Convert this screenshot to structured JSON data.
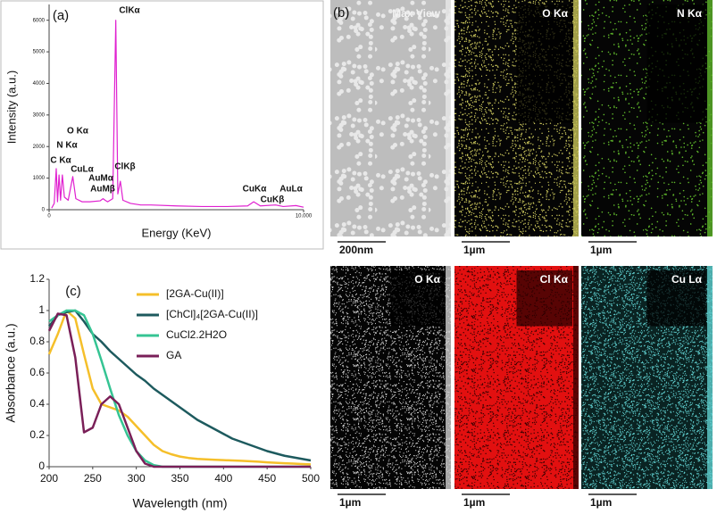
{
  "chart_data": [
    {
      "type": "line",
      "panel_label": "(a)",
      "x_label": "Energy (KeV)",
      "y_label": "Intensity (a.u.)",
      "x": [
        0.1,
        0.2,
        0.28,
        0.33,
        0.39,
        0.45,
        0.52,
        0.6,
        0.75,
        0.93,
        1.05,
        1.3,
        1.6,
        2.0,
        2.12,
        2.2,
        2.3,
        2.5,
        2.62,
        2.7,
        2.8,
        2.9,
        3.2,
        3.6,
        4.0,
        5.0,
        6.0,
        7.0,
        7.8,
        8.04,
        8.3,
        8.9,
        9.2,
        9.7,
        10.0
      ],
      "values": [
        50,
        200,
        1300,
        250,
        1100,
        300,
        1100,
        400,
        300,
        1050,
        350,
        250,
        250,
        280,
        350,
        300,
        250,
        350,
        6000,
        500,
        900,
        300,
        200,
        150,
        150,
        120,
        100,
        100,
        120,
        250,
        120,
        150,
        100,
        130,
        80
      ],
      "color": "#e020d0",
      "xlim": [
        0,
        10
      ],
      "xticks": [
        0,
        {
          "value": 10,
          "label": "10.000"
        }
      ],
      "ylim": [
        0,
        6500
      ],
      "yticks": [
        0,
        1000,
        2000,
        3000,
        4000,
        5000,
        6000
      ],
      "peak_labels": [
        "C Kα",
        "N Kα",
        "O Kα",
        "CuLα",
        "AuMα",
        "AuMβ",
        "ClKα",
        "ClKβ",
        "CuKα",
        "CuKβ",
        "AuLα"
      ]
    },
    {
      "type": "line",
      "panel_label": "(c)",
      "x_label": "Wavelength (nm)",
      "y_label": "Absorbance (a.u.)",
      "x": [
        200,
        210,
        220,
        230,
        240,
        250,
        260,
        270,
        280,
        290,
        300,
        310,
        320,
        330,
        340,
        350,
        360,
        370,
        380,
        390,
        400,
        410,
        420,
        430,
        440,
        450,
        460,
        470,
        480,
        490,
        500
      ],
      "series": [
        {
          "name": "[2GA-Cu(II)]",
          "color": "#f5bf2a",
          "values": [
            0.72,
            0.85,
            1.0,
            0.95,
            0.72,
            0.5,
            0.4,
            0.38,
            0.36,
            0.32,
            0.26,
            0.2,
            0.14,
            0.1,
            0.08,
            0.065,
            0.056,
            0.05,
            0.047,
            0.044,
            0.042,
            0.04,
            0.038,
            0.035,
            0.032,
            0.028,
            0.025,
            0.022,
            0.02,
            0.017,
            0.015
          ]
        },
        {
          "name": "[ChCl]₄[2GA-Cu(II)]",
          "color": "#1d5a5e",
          "values": [
            0.9,
            0.97,
            0.99,
            1.0,
            0.93,
            0.85,
            0.8,
            0.74,
            0.69,
            0.64,
            0.59,
            0.55,
            0.5,
            0.46,
            0.42,
            0.38,
            0.34,
            0.3,
            0.27,
            0.24,
            0.21,
            0.18,
            0.16,
            0.14,
            0.12,
            0.1,
            0.085,
            0.07,
            0.06,
            0.05,
            0.04
          ]
        },
        {
          "name": "CuCl2.2H2O",
          "color": "#35c493",
          "values": [
            0.93,
            0.97,
            1.0,
            1.0,
            0.97,
            0.85,
            0.68,
            0.5,
            0.33,
            0.2,
            0.1,
            0.04,
            0.01,
            0,
            0,
            0,
            0,
            0,
            0,
            0,
            0,
            0,
            0,
            0,
            0,
            0,
            0,
            0,
            0,
            0,
            0
          ]
        },
        {
          "name": "GA",
          "color": "#7a1f58",
          "values": [
            0.87,
            0.98,
            0.97,
            0.7,
            0.22,
            0.25,
            0.4,
            0.45,
            0.4,
            0.25,
            0.1,
            0.02,
            0,
            0,
            0,
            0,
            0,
            0,
            0,
            0,
            0,
            0,
            0,
            0,
            0,
            0,
            0,
            0,
            0,
            0,
            0
          ]
        }
      ],
      "xlim": [
        200,
        500
      ],
      "xticks": [
        200,
        250,
        300,
        350,
        400,
        450,
        500
      ],
      "ylim": [
        0,
        1.2
      ],
      "yticks": [
        0,
        0.2,
        0.4,
        0.6,
        0.8,
        1,
        1.2
      ]
    }
  ],
  "maps": {
    "panel_label": "(b)",
    "tiles": [
      {
        "title": "Max View",
        "scale": "200nm"
      },
      {
        "title": "O Kα",
        "scale": "1µm"
      },
      {
        "title": "N Kα",
        "scale": "1µm"
      },
      {
        "title": "O Kα",
        "scale": "1µm"
      },
      {
        "title": "Cl Kα",
        "scale": "1µm"
      },
      {
        "title": "Cu Lα",
        "scale": "1µm"
      }
    ]
  }
}
